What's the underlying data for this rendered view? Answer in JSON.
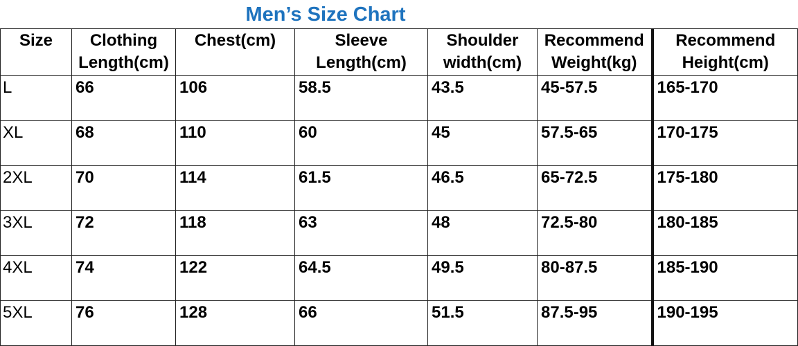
{
  "title": "Men’s Size Chart",
  "table": {
    "header": [
      [
        "Size"
      ],
      [
        "Clothing",
        "Length(cm)"
      ],
      [
        "Chest(cm)"
      ],
      [
        "Sleeve",
        "Length(cm)"
      ],
      [
        "Shoulder",
        "width(cm)"
      ],
      [
        "Recommend",
        "Weight(kg)"
      ],
      [
        "Recommend",
        "Height(cm)"
      ]
    ],
    "rows": [
      [
        "L",
        "66",
        "106",
        "58.5",
        "43.5",
        "45-57.5",
        "165-170"
      ],
      [
        "XL",
        "68",
        "110",
        "60",
        "45",
        "57.5-65",
        "170-175"
      ],
      [
        "2XL",
        "70",
        "114",
        "61.5",
        "46.5",
        "65-72.5",
        "175-180"
      ],
      [
        "3XL",
        "72",
        "118",
        "63",
        "48",
        "72.5-80",
        "180-185"
      ],
      [
        "4XL",
        "74",
        "122",
        "64.5",
        "49.5",
        "80-87.5",
        "185-190"
      ],
      [
        "5XL",
        "76",
        "128",
        "66",
        "51.5",
        "87.5-95",
        "190-195"
      ]
    ]
  }
}
